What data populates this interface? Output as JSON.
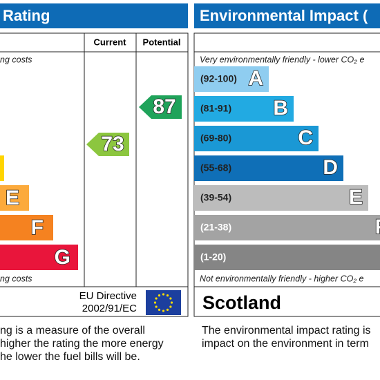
{
  "energy": {
    "title": "Rating",
    "columns": [
      "Current",
      "Potential"
    ],
    "top_note": "ng costs",
    "bands": [
      "E",
      "F",
      "G"
    ],
    "current": "73",
    "potential": "87",
    "bottom_note": "ng costs",
    "directive": [
      "EU Directive",
      "2002/91/EC"
    ],
    "description": [
      "ng is a measure of the overall",
      "higher the rating the more energy",
      "he lower the fuel bills will be."
    ]
  },
  "environmental": {
    "title": "Environmental Impact (",
    "top_note": "Very environmentally friendly - lower CO₂ e",
    "bands": [
      {
        "range": "(92-100)",
        "letter": "A"
      },
      {
        "range": "(81-91)",
        "letter": "B"
      },
      {
        "range": "(69-80)",
        "letter": "C"
      },
      {
        "range": "(55-68)",
        "letter": "D"
      },
      {
        "range": "(39-54)",
        "letter": "E"
      },
      {
        "range": "(21-38)",
        "letter": "F"
      },
      {
        "range": "(1-20)"
      }
    ],
    "bottom_note": "Not environmentally friendly - higher CO₂ e",
    "region": "Scotland",
    "description": [
      "The environmental impact rating is",
      "impact on the environment in term"
    ]
  }
}
